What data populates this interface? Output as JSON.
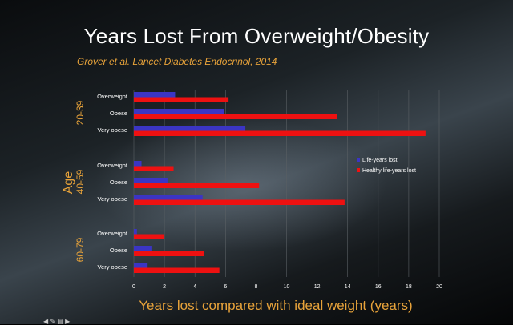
{
  "slide": {
    "title": "Years Lost From Overweight/Obesity",
    "citation": "Grover et al. Lancet Diabetes Endocrinol, 2014"
  },
  "chart_data": {
    "type": "bar",
    "orientation": "horizontal",
    "ylabel": "Age",
    "xlabel": "Years lost compared with ideal weight (years)",
    "xlim": [
      0,
      20
    ],
    "xticks": [
      0,
      2,
      4,
      6,
      8,
      10,
      12,
      14,
      16,
      18,
      20
    ],
    "grid": true,
    "legend_position": "right",
    "groups": [
      {
        "name": "20-39",
        "categories": [
          "Overweight",
          "Obese",
          "Very obese"
        ]
      },
      {
        "name": "40-59",
        "categories": [
          "Overweight",
          "Obese",
          "Very obese"
        ]
      },
      {
        "name": "60-79",
        "categories": [
          "Overweight",
          "Obese",
          "Very obese"
        ]
      }
    ],
    "series": [
      {
        "name": "Life-years lost",
        "color": "#3b35c4",
        "values": [
          [
            2.7,
            5.9,
            7.3
          ],
          [
            0.5,
            2.2,
            4.5
          ],
          [
            0.2,
            1.2,
            0.9
          ]
        ]
      },
      {
        "name": "Healthy life-years lost",
        "color": "#ee1111",
        "values": [
          [
            6.2,
            13.3,
            19.1
          ],
          [
            2.6,
            8.2,
            13.8
          ],
          [
            2.0,
            4.6,
            5.6
          ]
        ]
      }
    ],
    "colors": {
      "axis_label": "#e8a33a",
      "text": "#ffffff",
      "grid": "#5a6064"
    }
  }
}
